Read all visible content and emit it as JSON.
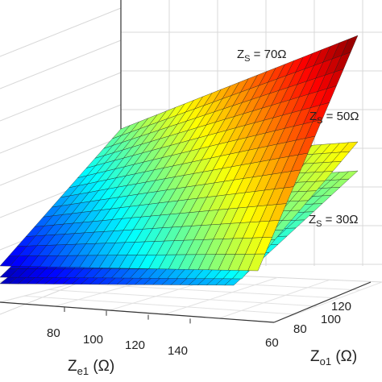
{
  "chart_data": {
    "type": "surface",
    "title": "",
    "xlabel": "Z_e1 (Ω)",
    "ylabel": "Z_o1 (Ω)",
    "zlabel": "",
    "x_ticks": [
      "80",
      "100",
      "120",
      "140"
    ],
    "y_ticks": [
      "60",
      "80",
      "100",
      "120"
    ],
    "grid": true,
    "colormap": "jet",
    "series": [
      {
        "name": "Z_S = 30Ω",
        "label_main": "Z",
        "label_sub": "S",
        "label_rest": " = 30Ω"
      },
      {
        "name": "Z_S = 50Ω",
        "label_main": "Z",
        "label_sub": "S",
        "label_rest": " = 50Ω"
      },
      {
        "name": "Z_S = 70Ω",
        "label_main": "Z",
        "label_sub": "S",
        "label_rest": " = 70Ω"
      }
    ]
  },
  "axis_label_text": {
    "x_main": "Z",
    "x_sub": "e1",
    "x_rest": " (Ω)",
    "y_main": "Z",
    "y_sub": "o1",
    "y_rest": " (Ω)"
  }
}
